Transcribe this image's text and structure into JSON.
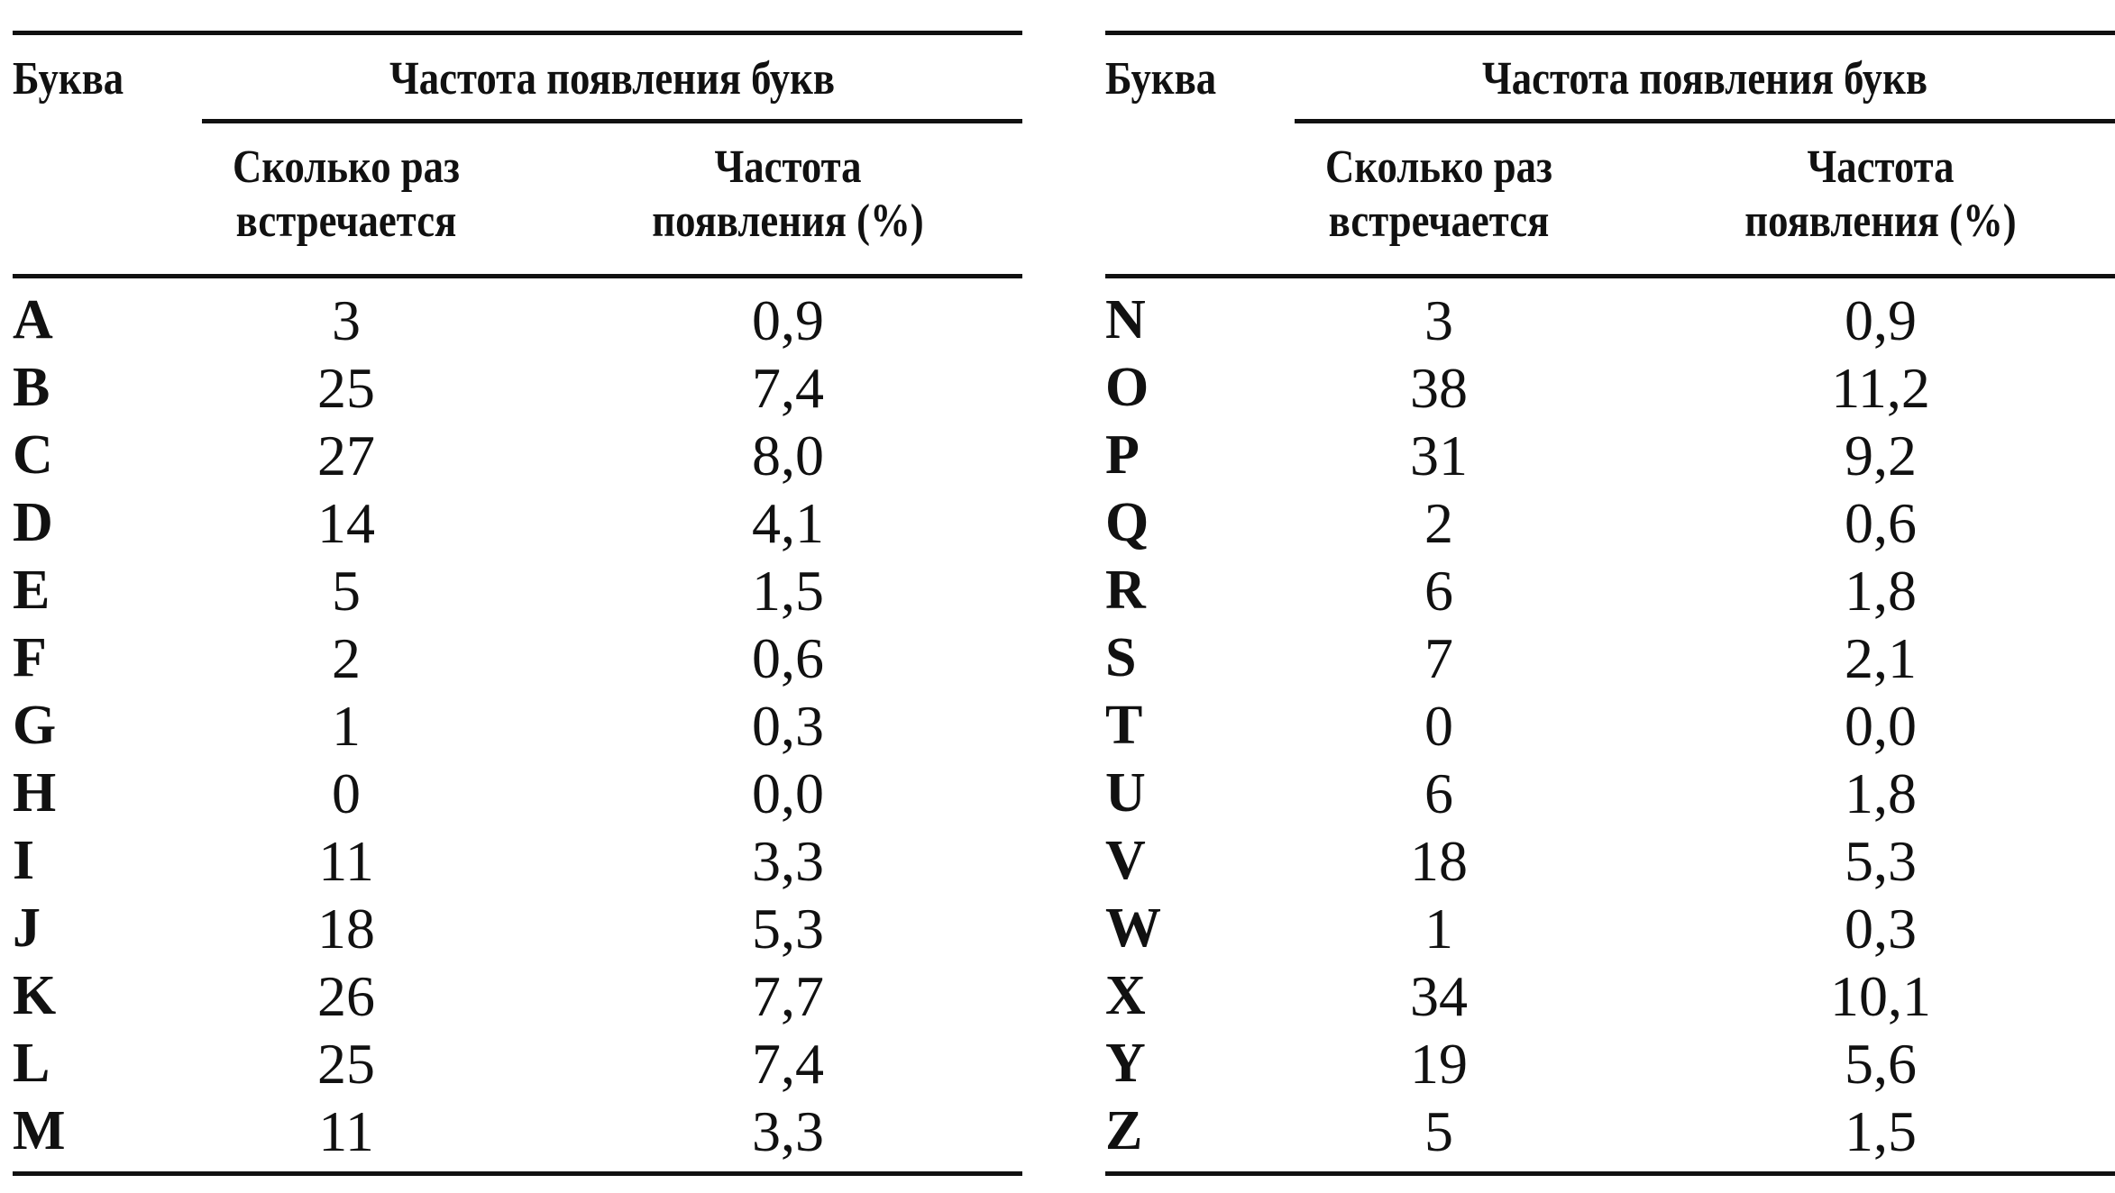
{
  "headers": {
    "letter": "Буква",
    "group": "Частота появления букв",
    "count_line1": "Сколько раз",
    "count_line2": "встречается",
    "freq_line1": "Частота",
    "freq_line2": "появления (%)"
  },
  "left_rows": [
    {
      "letter": "A",
      "count": "3",
      "freq": "0,9"
    },
    {
      "letter": "B",
      "count": "25",
      "freq": "7,4"
    },
    {
      "letter": "C",
      "count": "27",
      "freq": "8,0"
    },
    {
      "letter": "D",
      "count": "14",
      "freq": "4,1"
    },
    {
      "letter": "E",
      "count": "5",
      "freq": "1,5"
    },
    {
      "letter": "F",
      "count": "2",
      "freq": "0,6"
    },
    {
      "letter": "G",
      "count": "1",
      "freq": "0,3"
    },
    {
      "letter": "H",
      "count": "0",
      "freq": "0,0"
    },
    {
      "letter": "I",
      "count": "11",
      "freq": "3,3"
    },
    {
      "letter": "J",
      "count": "18",
      "freq": "5,3"
    },
    {
      "letter": "K",
      "count": "26",
      "freq": "7,7"
    },
    {
      "letter": "L",
      "count": "25",
      "freq": "7,4"
    },
    {
      "letter": "M",
      "count": "11",
      "freq": "3,3"
    }
  ],
  "right_rows": [
    {
      "letter": "N",
      "count": "3",
      "freq": "0,9"
    },
    {
      "letter": "O",
      "count": "38",
      "freq": "11,2"
    },
    {
      "letter": "P",
      "count": "31",
      "freq": "9,2"
    },
    {
      "letter": "Q",
      "count": "2",
      "freq": "0,6"
    },
    {
      "letter": "R",
      "count": "6",
      "freq": "1,8"
    },
    {
      "letter": "S",
      "count": "7",
      "freq": "2,1"
    },
    {
      "letter": "T",
      "count": "0",
      "freq": "0,0"
    },
    {
      "letter": "U",
      "count": "6",
      "freq": "1,8"
    },
    {
      "letter": "V",
      "count": "18",
      "freq": "5,3"
    },
    {
      "letter": "W",
      "count": "1",
      "freq": "0,3"
    },
    {
      "letter": "X",
      "count": "34",
      "freq": "10,1"
    },
    {
      "letter": "Y",
      "count": "19",
      "freq": "5,6"
    },
    {
      "letter": "Z",
      "count": "5",
      "freq": "1,5"
    }
  ]
}
